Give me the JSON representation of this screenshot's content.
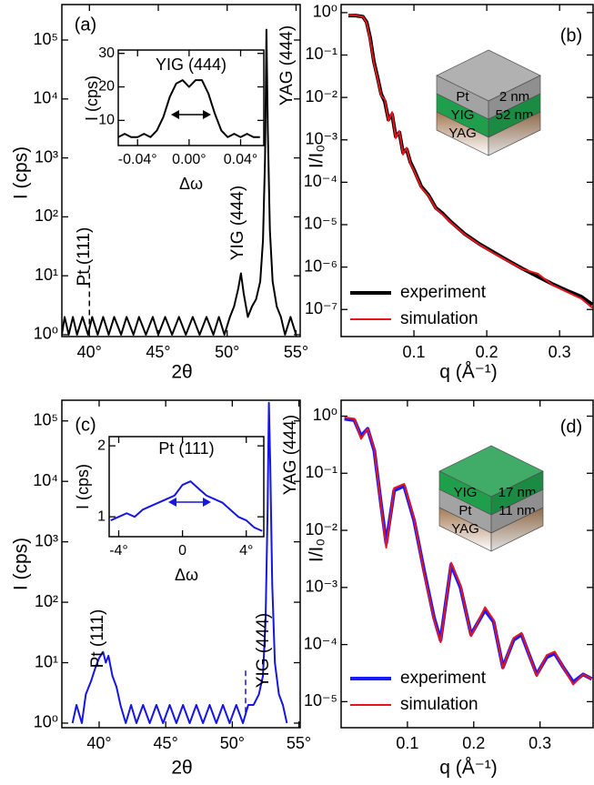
{
  "chart_data": [
    {
      "type": "line",
      "panel_label": "(a)",
      "x_label": "2θ",
      "y_label": "I (cps)",
      "log_y": true,
      "xlim": [
        38,
        55.3
      ],
      "ylim": [
        0.93,
        400000
      ],
      "xticks": [
        {
          "value": 40,
          "label": "40°"
        },
        {
          "value": 45,
          "label": "45°"
        },
        {
          "value": 50,
          "label": "50°"
        },
        {
          "value": 55,
          "label": "55°"
        }
      ],
      "yticks": [
        {
          "value": 1,
          "label": "10⁰"
        },
        {
          "value": 10,
          "label": "10¹"
        },
        {
          "value": 100,
          "label": "10²"
        },
        {
          "value": 1000,
          "label": "10³"
        },
        {
          "value": 10000,
          "label": "10⁴"
        },
        {
          "value": 100000,
          "label": "10⁵"
        }
      ],
      "x": [
        38.0,
        38.2,
        38.5,
        38.8,
        39.1,
        39.5,
        39.9,
        40.2,
        40.6,
        41.0,
        41.4,
        41.8,
        42.3,
        42.7,
        43.2,
        43.6,
        44.1,
        44.6,
        45.0,
        45.5,
        46.0,
        46.5,
        47.0,
        47.5,
        48.0,
        48.5,
        49.0,
        49.4,
        49.8,
        50.2,
        50.5,
        50.8,
        51.0,
        51.2,
        51.5,
        51.8,
        52.1,
        52.4,
        52.6,
        52.75,
        52.85,
        52.95,
        53.1,
        53.3,
        53.6,
        53.9,
        54.2,
        54.6,
        55.0
      ],
      "series": [
        {
          "color": "#000000",
          "values": [
            1,
            2,
            1,
            2,
            1,
            2,
            1,
            2,
            1,
            2,
            1,
            2,
            1,
            2,
            1,
            2,
            1,
            2,
            1,
            2,
            1,
            2,
            1,
            2,
            1,
            2,
            1,
            2,
            1,
            2,
            3,
            6,
            11,
            5,
            2,
            3,
            4,
            8,
            40,
            1000,
            150000,
            3000,
            60,
            8,
            3,
            2,
            1,
            2,
            1
          ]
        }
      ],
      "annotations": [
        "Pt (111)",
        "YIG (444)",
        "YAG (444)"
      ],
      "marker_lines": [
        {
          "x": 40,
          "y": [
            1.5,
            15
          ]
        }
      ],
      "inset": {
        "type": "line",
        "title": "YIG (444)",
        "x_label": "Δω",
        "y_label": "I (cps)",
        "xlim": [
          -0.055,
          0.058
        ],
        "ylim": [
          2.5,
          31
        ],
        "xticks": [
          {
            "value": -0.04,
            "label": "-0.04°"
          },
          {
            "value": 0,
            "label": "0.00°"
          },
          {
            "value": 0.04,
            "label": "0.04°"
          }
        ],
        "yticks": [
          10,
          20,
          30
        ],
        "x": [
          -0.055,
          -0.05,
          -0.045,
          -0.04,
          -0.035,
          -0.03,
          -0.025,
          -0.02,
          -0.015,
          -0.01,
          -0.005,
          0,
          0.005,
          0.01,
          0.015,
          0.02,
          0.025,
          0.03,
          0.035,
          0.04,
          0.045,
          0.05,
          0.055
        ],
        "series": [
          {
            "color": "#000000",
            "values": [
              5,
              6,
              5,
              5,
              6,
              5,
              7,
              11,
              17,
              21,
              22,
              20,
              22,
              22,
              18,
              12,
              7,
              5,
              6,
              5,
              6,
              5,
              5
            ]
          }
        ]
      }
    },
    {
      "type": "line",
      "panel_label": "(b)",
      "x_label": "q (Å⁻¹)",
      "y_label": "I/I₀",
      "log_y": true,
      "xlim": [
        0,
        0.346
      ],
      "ylim": [
        2.3e-08,
        1.55
      ],
      "xticks": [
        0.1,
        0.2,
        0.3
      ],
      "yticks": [
        {
          "value": 1,
          "label": "10⁰"
        },
        {
          "value": 0.1,
          "label": "10⁻¹"
        },
        {
          "value": 0.01,
          "label": "10⁻²"
        },
        {
          "value": 0.001,
          "label": "10⁻³"
        },
        {
          "value": 0.0001,
          "label": "10⁻⁴"
        },
        {
          "value": 1e-05,
          "label": "10⁻⁵"
        },
        {
          "value": 1e-06,
          "label": "10⁻⁶"
        },
        {
          "value": 1e-07,
          "label": "10⁻⁷"
        }
      ],
      "legend": "lower left",
      "x": [
        0.01,
        0.02,
        0.03,
        0.035,
        0.04,
        0.045,
        0.05,
        0.055,
        0.06,
        0.065,
        0.07,
        0.075,
        0.08,
        0.085,
        0.09,
        0.095,
        0.1,
        0.11,
        0.12,
        0.13,
        0.14,
        0.15,
        0.17,
        0.19,
        0.21,
        0.23,
        0.25,
        0.27,
        0.29,
        0.31,
        0.33,
        0.345
      ],
      "series": [
        {
          "name": "experiment",
          "color": "#000000",
          "values": [
            0.85,
            0.85,
            0.8,
            0.6,
            0.25,
            0.07,
            0.03,
            0.012,
            0.008,
            0.003,
            0.004,
            0.0012,
            0.0015,
            0.0005,
            0.0006,
            0.0003,
            0.0002,
            8e-05,
            5e-05,
            2.5e-05,
            1.8e-05,
            1.2e-05,
            6e-06,
            3.5e-06,
            2.2e-06,
            1.4e-06,
            9e-07,
            6e-07,
            4e-07,
            2.8e-07,
            2e-07,
            1.3e-07
          ]
        },
        {
          "name": "simulation",
          "color": "#e8141c",
          "values": [
            0.88,
            0.86,
            0.8,
            0.58,
            0.22,
            0.065,
            0.028,
            0.011,
            0.009,
            0.0028,
            0.0045,
            0.0011,
            0.0016,
            0.00045,
            0.00065,
            0.00028,
            0.00019,
            7.5e-05,
            4.8e-05,
            2.4e-05,
            1.7e-05,
            1.15e-05,
            5.8e-06,
            3.4e-06,
            2.1e-06,
            1.35e-06,
            8.8e-07,
            7e-07,
            3.8e-07,
            2.6e-07,
            1.8e-07,
            1.1e-07
          ]
        }
      ],
      "layers": [
        {
          "name": "Pt",
          "thickness": "2 nm",
          "color": "#a3a3a3"
        },
        {
          "name": "YIG",
          "thickness": "52 nm",
          "color": "#1f9e4c"
        },
        {
          "name": "YAG",
          "color": "#a57a55"
        }
      ]
    },
    {
      "type": "line",
      "panel_label": "(c)",
      "x_label": "2θ",
      "y_label": "I (cps)",
      "log_y": true,
      "xlim": [
        37.2,
        55.1
      ],
      "ylim": [
        0.84,
        220000
      ],
      "xticks": [
        {
          "value": 40,
          "label": "40°"
        },
        {
          "value": 45,
          "label": "45°"
        },
        {
          "value": 50,
          "label": "50°"
        },
        {
          "value": 55,
          "label": "55°"
        }
      ],
      "yticks": [
        {
          "value": 1,
          "label": "10⁰"
        },
        {
          "value": 10,
          "label": "10¹"
        },
        {
          "value": 100,
          "label": "10²"
        },
        {
          "value": 1000,
          "label": "10³"
        },
        {
          "value": 10000,
          "label": "10⁴"
        },
        {
          "value": 100000,
          "label": "10⁵"
        }
      ],
      "x": [
        38.0,
        38.3,
        38.7,
        39.0,
        39.4,
        39.7,
        40.0,
        40.3,
        40.5,
        40.7,
        41.0,
        41.3,
        41.6,
        42.0,
        42.4,
        42.8,
        43.3,
        43.8,
        44.3,
        44.8,
        45.3,
        45.8,
        46.3,
        46.8,
        47.3,
        47.8,
        48.3,
        48.8,
        49.3,
        49.8,
        50.3,
        50.8,
        51.2,
        51.6,
        52.0,
        52.3,
        52.5,
        52.65,
        52.75,
        52.85,
        53.0,
        53.2,
        53.5,
        53.8,
        54.1
      ],
      "series": [
        {
          "color": "#1515e6",
          "values": [
            1,
            2,
            1,
            3,
            5,
            8,
            12,
            15,
            10,
            13,
            6,
            4,
            2,
            1,
            2,
            1,
            2,
            1,
            2,
            1,
            2,
            1,
            2,
            1,
            2,
            1,
            2,
            1,
            2,
            1,
            2,
            1,
            2,
            2,
            3,
            6,
            50,
            3000,
            200000,
            20000,
            200,
            10,
            3,
            2,
            1
          ]
        }
      ],
      "annotations": [
        "Pt (111)",
        "YIG (444)",
        "YAG (444)"
      ],
      "marker_lines": [
        {
          "x": 51,
          "y": [
            1.5,
            8
          ]
        }
      ],
      "inset": {
        "type": "line",
        "title": "Pt (111)",
        "x_label": "Δω",
        "y_label": "I (cps)",
        "xlim": [
          -4.6,
          5.1
        ],
        "ylim": [
          0.72,
          2.13
        ],
        "xticks": [
          {
            "value": -4,
            "label": "-4°"
          },
          0,
          {
            "value": 4,
            "label": "4°"
          }
        ],
        "yticks": [
          1,
          2
        ],
        "x": [
          -4.5,
          -4,
          -3.5,
          -3,
          -2.5,
          -2,
          -1.5,
          -1,
          -0.5,
          0,
          0.5,
          1,
          1.5,
          2,
          2.5,
          3,
          3.5,
          4,
          4.5,
          5
        ],
        "series": [
          {
            "color": "#1515e6",
            "values": [
              0.95,
              1.0,
              1.05,
              1.0,
              1.1,
              1.15,
              1.2,
              1.25,
              1.3,
              1.45,
              1.5,
              1.4,
              1.3,
              1.25,
              1.2,
              1.1,
              1.0,
              0.95,
              0.85,
              0.8
            ]
          }
        ]
      }
    },
    {
      "type": "line",
      "panel_label": "(d)",
      "x_label": "q (Å⁻¹)",
      "y_label": "I/I₀",
      "log_y": true,
      "xlim": [
        0,
        0.38
      ],
      "ylim": [
        3.5e-06,
        1.9
      ],
      "xticks": [
        0.1,
        0.2,
        0.3
      ],
      "yticks": [
        {
          "value": 1,
          "label": "10⁰"
        },
        {
          "value": 0.1,
          "label": "10⁻¹"
        },
        {
          "value": 0.01,
          "label": "10⁻²"
        },
        {
          "value": 0.001,
          "label": "10⁻³"
        },
        {
          "value": 0.0001,
          "label": "10⁻⁴"
        },
        {
          "value": 1e-05,
          "label": "10⁻⁵"
        }
      ],
      "legend": "lower left",
      "x": [
        0.005,
        0.02,
        0.03,
        0.04,
        0.05,
        0.06,
        0.068,
        0.08,
        0.095,
        0.11,
        0.125,
        0.14,
        0.15,
        0.166,
        0.18,
        0.196,
        0.217,
        0.23,
        0.244,
        0.26,
        0.272,
        0.285,
        0.295,
        0.31,
        0.322,
        0.335,
        0.35,
        0.365,
        0.378
      ],
      "series": [
        {
          "name": "experiment",
          "color": "#1a1aff",
          "values": [
            0.9,
            0.85,
            0.45,
            0.6,
            0.25,
            0.03,
            0.006,
            0.05,
            0.06,
            0.015,
            0.002,
            0.0003,
            0.00012,
            0.0025,
            0.001,
            0.00015,
            0.0004,
            0.00025,
            4e-05,
            0.00012,
            0.00015,
            6e-05,
            3e-05,
            6e-05,
            7e-05,
            4e-05,
            2.2e-05,
            3e-05,
            2.5e-05
          ]
        },
        {
          "name": "simulation",
          "color": "#e8141c",
          "values": [
            0.95,
            0.9,
            0.4,
            0.6,
            0.27,
            0.028,
            0.005,
            0.055,
            0.065,
            0.016,
            0.0018,
            0.00028,
            0.00011,
            0.0027,
            0.0011,
            0.00014,
            0.00045,
            0.00027,
            3.8e-05,
            0.00013,
            0.00016,
            6e-05,
            2.8e-05,
            6.5e-05,
            7.5e-05,
            4e-05,
            2e-05,
            3e-05,
            2.5e-05
          ]
        }
      ],
      "layers": [
        {
          "name": "YIG",
          "thickness": "17 nm",
          "color": "#1f9e4c"
        },
        {
          "name": "Pt",
          "thickness": "11 nm",
          "color": "#a3a3a3"
        },
        {
          "name": "YAG",
          "color": "#a57a55"
        }
      ]
    }
  ]
}
